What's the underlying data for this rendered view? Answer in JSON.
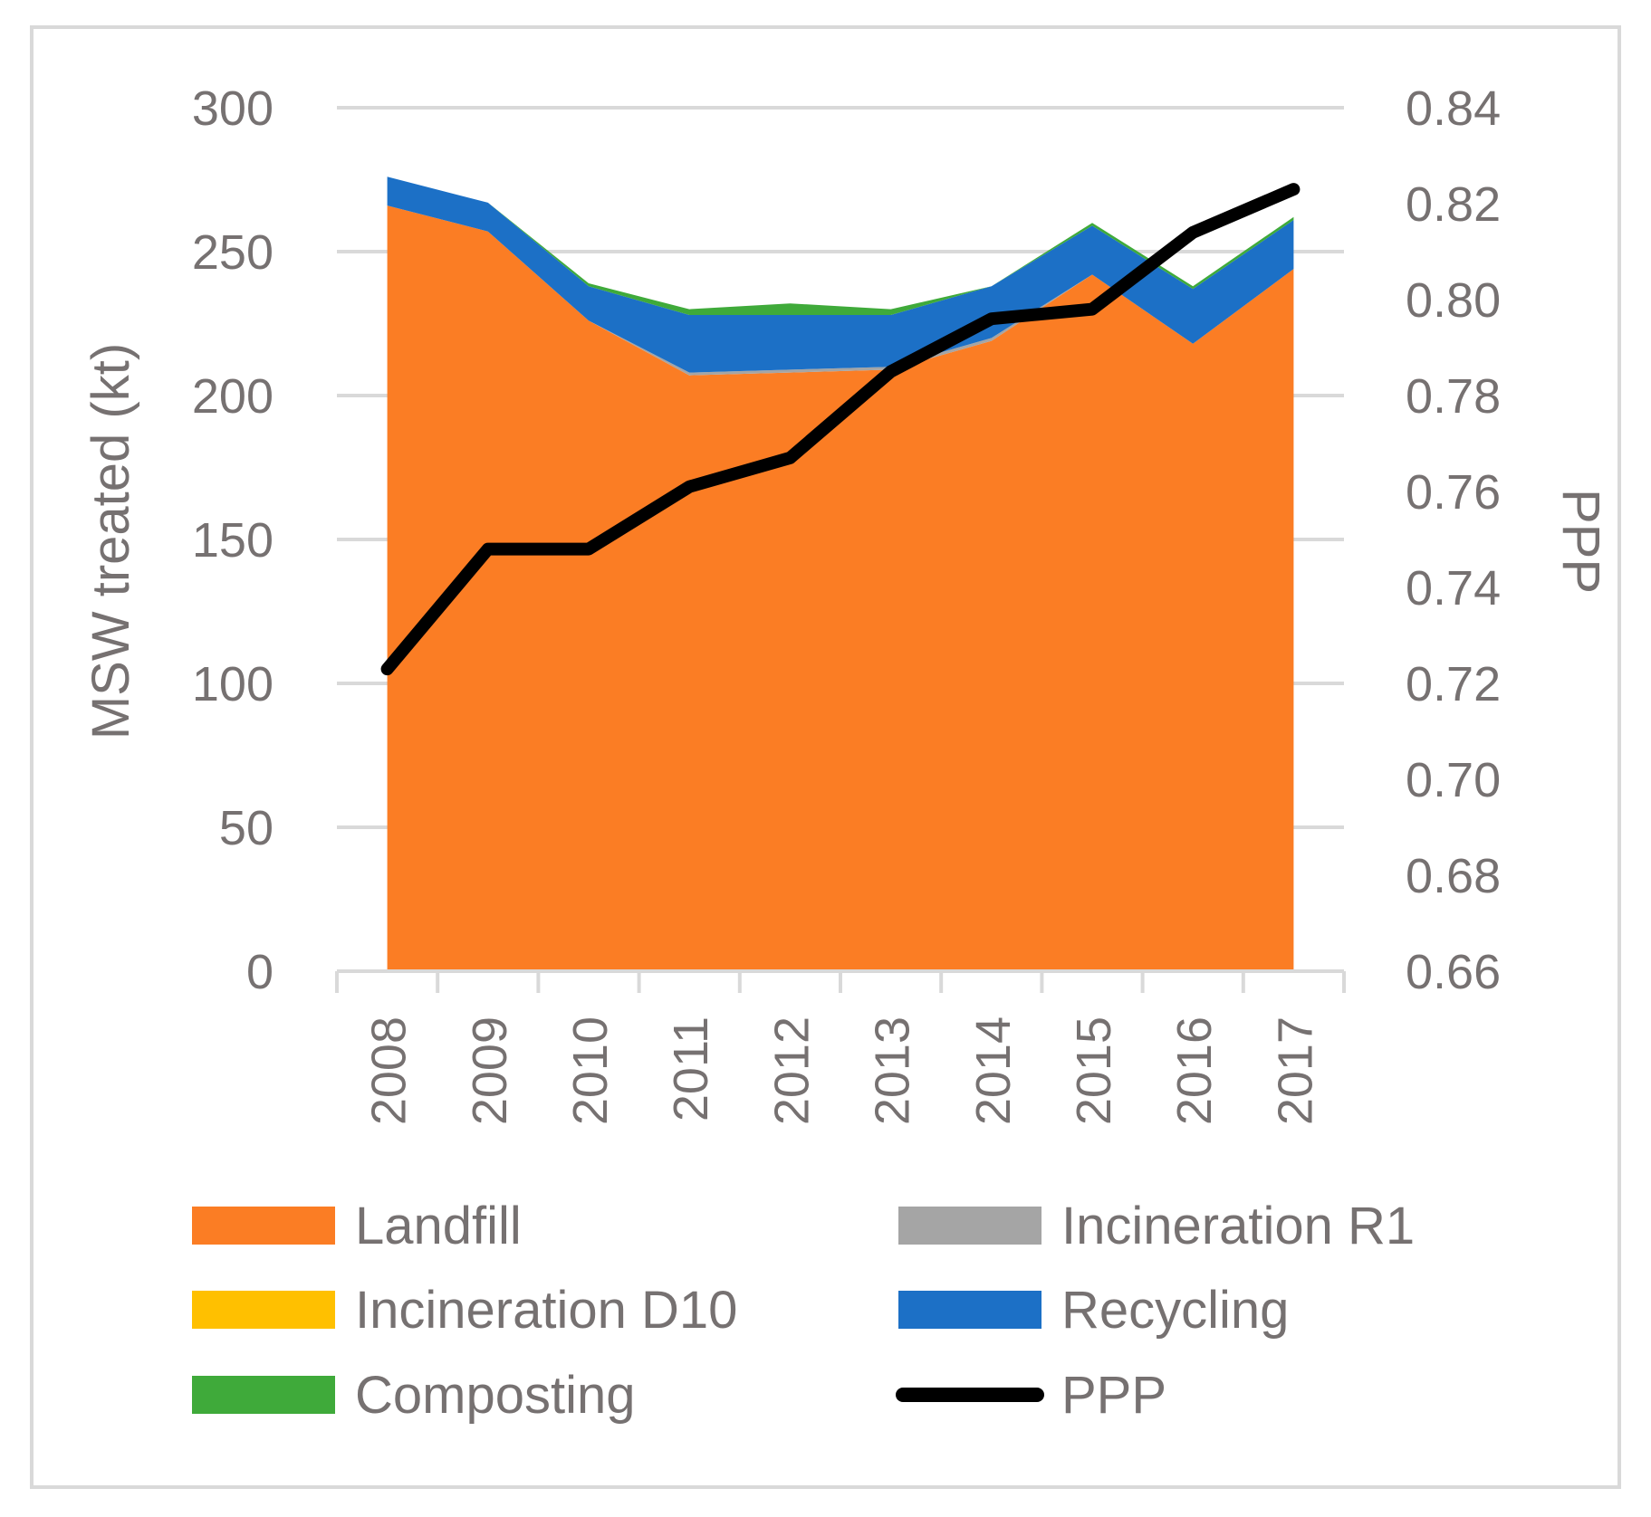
{
  "chart_data": {
    "type": "area",
    "stacked": true,
    "title": "",
    "categories": [
      "2008",
      "2009",
      "2010",
      "2011",
      "2012",
      "2013",
      "2014",
      "2015",
      "2016",
      "2017"
    ],
    "series": [
      {
        "name": "Landfill",
        "type": "area",
        "axis": "left",
        "color": "#fb7d24",
        "values": [
          266,
          257,
          226,
          207,
          208,
          209,
          219,
          242,
          218,
          244
        ]
      },
      {
        "name": "Incineration R1",
        "type": "area",
        "axis": "left",
        "color": "#a5a5a5",
        "values": [
          0,
          0,
          0,
          1,
          1,
          1,
          1,
          0,
          0,
          0
        ]
      },
      {
        "name": "Incineration D10",
        "type": "area",
        "axis": "left",
        "color": "#ffc000",
        "values": [
          0,
          0,
          0,
          0,
          0,
          0,
          0,
          0,
          0,
          0
        ]
      },
      {
        "name": "Recycling",
        "type": "area",
        "axis": "left",
        "color": "#1c70c6",
        "values": [
          10,
          10,
          12,
          20,
          19,
          18,
          18,
          17,
          19,
          17
        ]
      },
      {
        "name": "Composting",
        "type": "area",
        "axis": "left",
        "color": "#3faa3a",
        "values": [
          0,
          0,
          1,
          2,
          4,
          2,
          0,
          1,
          1,
          1
        ]
      },
      {
        "name": "PPP",
        "type": "line",
        "axis": "right",
        "color": "#000000",
        "values": [
          0.723,
          0.748,
          0.748,
          0.761,
          0.767,
          0.785,
          0.796,
          0.798,
          0.814,
          0.823
        ]
      }
    ],
    "y_left": {
      "label": "MSW treated (kt)",
      "min": 0,
      "max": 300,
      "step": 50,
      "ticks": [
        "0",
        "50",
        "100",
        "150",
        "200",
        "250",
        "300"
      ]
    },
    "y_right": {
      "label": "PPP",
      "min": 0.66,
      "max": 0.84,
      "step": 0.02,
      "ticks": [
        "0.66",
        "0.68",
        "0.70",
        "0.72",
        "0.74",
        "0.76",
        "0.78",
        "0.80",
        "0.82",
        "0.84"
      ]
    },
    "xlabel": "",
    "grid": true,
    "legend": {
      "position": "bottom",
      "columns": 2
    }
  },
  "colors": {
    "grid": "#d9d9d9",
    "text": "#767171",
    "border": "#d9d9d9"
  }
}
